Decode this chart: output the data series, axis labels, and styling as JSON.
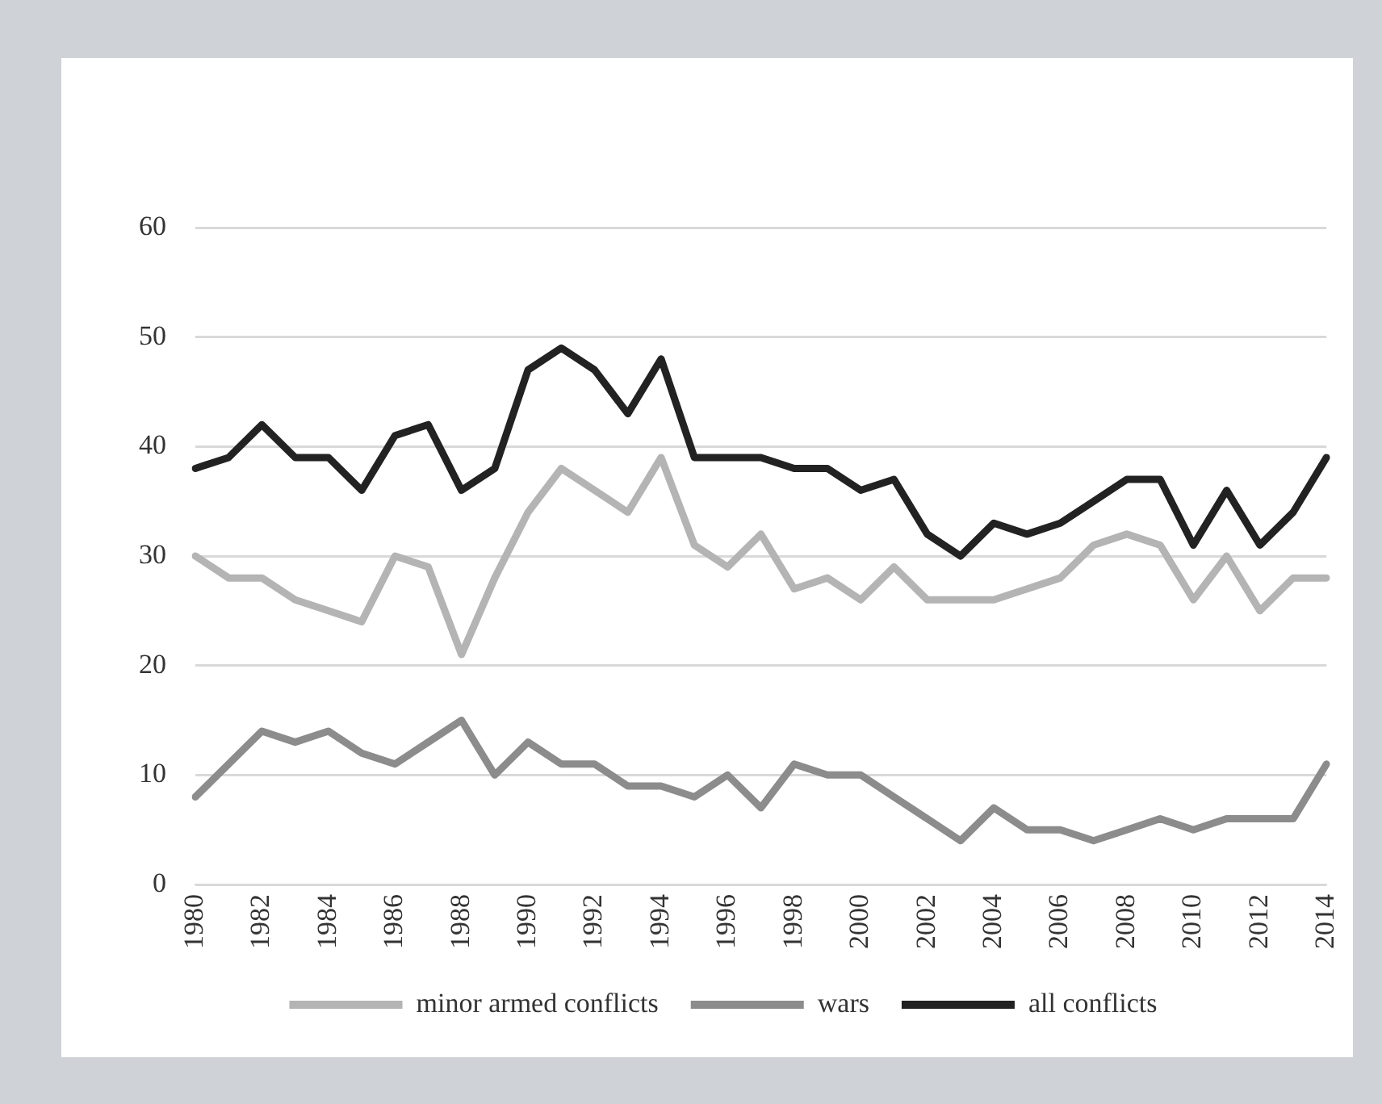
{
  "chart_data": {
    "type": "line",
    "categories": [
      "1980",
      null,
      "1982",
      null,
      "1984",
      null,
      "1986",
      null,
      "1988",
      null,
      "1990",
      null,
      "1992",
      null,
      "1994",
      null,
      "1996",
      null,
      "1998",
      null,
      "2000",
      null,
      "2002",
      null,
      "2004",
      null,
      "2006",
      null,
      "2008",
      null,
      "2010",
      null,
      "2012",
      null,
      "2014"
    ],
    "series": [
      {
        "name": "minor armed conflicts",
        "color": "#b4b4b4",
        "values": [
          30,
          28,
          28,
          26,
          25,
          24,
          30,
          29,
          21,
          28,
          34,
          38,
          36,
          34,
          39,
          31,
          29,
          32,
          27,
          28,
          26,
          29,
          26,
          26,
          26,
          27,
          28,
          31,
          32,
          31,
          26,
          30,
          25,
          28,
          28
        ]
      },
      {
        "name": "wars",
        "color": "#8c8c8c",
        "values": [
          8,
          11,
          14,
          13,
          14,
          12,
          11,
          13,
          15,
          10,
          13,
          11,
          11,
          9,
          9,
          8,
          10,
          7,
          11,
          10,
          10,
          8,
          6,
          4,
          7,
          5,
          5,
          4,
          5,
          6,
          5,
          6,
          6,
          6,
          11
        ]
      },
      {
        "name": "all conflicts",
        "color": "#222222",
        "values": [
          38,
          39,
          42,
          39,
          39,
          36,
          41,
          42,
          36,
          38,
          47,
          49,
          47,
          43,
          48,
          39,
          39,
          39,
          38,
          38,
          36,
          37,
          32,
          30,
          33,
          32,
          33,
          35,
          37,
          37,
          31,
          36,
          31,
          34,
          39
        ]
      }
    ],
    "ylim": [
      0,
      60
    ],
    "yticks": [
      0,
      10,
      20,
      30,
      40,
      50,
      60
    ],
    "grid": "y",
    "legend": "bottom",
    "marker": "none",
    "line_style": "solid"
  }
}
